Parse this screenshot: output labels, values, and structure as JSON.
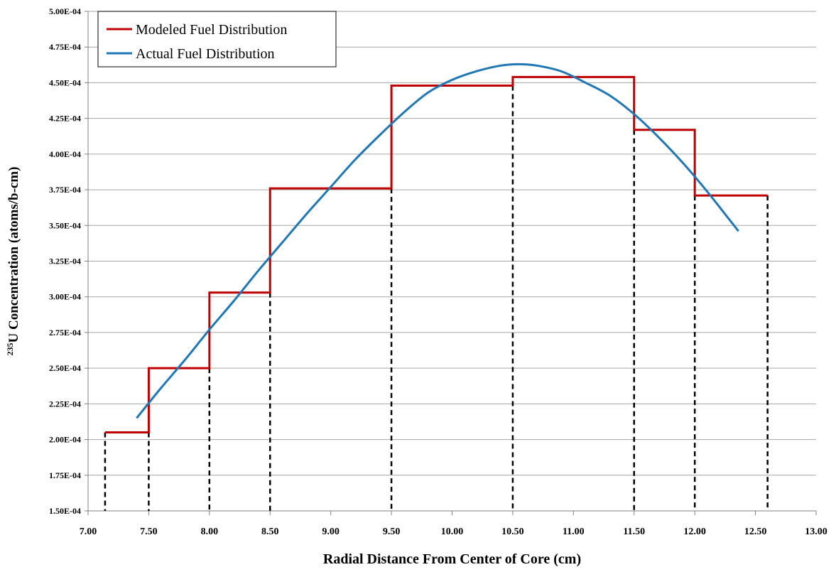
{
  "chart_data": {
    "type": "line",
    "xlabel": "Radial Distance From Center of Core (cm)",
    "ylabel": {
      "superscript": "235",
      "text": "U Concentration (atoms/b-cm)"
    },
    "xlim": [
      7.0,
      13.0
    ],
    "ylim": [
      0.00015,
      0.0005
    ],
    "x_ticks": [
      "7.00",
      "7.50",
      "8.00",
      "8.50",
      "9.00",
      "9.50",
      "10.00",
      "10.50",
      "11.00",
      "11.50",
      "12.00",
      "12.50",
      "13.00"
    ],
    "y_ticks": [
      "1.50E-04",
      "1.75E-04",
      "2.00E-04",
      "2.25E-04",
      "2.50E-04",
      "2.75E-04",
      "3.00E-04",
      "3.25E-04",
      "3.50E-04",
      "3.75E-04",
      "4.00E-04",
      "4.25E-04",
      "4.50E-04",
      "4.75E-04",
      "5.00E-04"
    ],
    "grid": "horizontal",
    "legend_position": "top-left",
    "series": [
      {
        "name": "Modeled Fuel Distribution",
        "style": "step",
        "color": "#c00000",
        "steps": [
          {
            "x0": 7.14,
            "x1": 7.5,
            "y": 0.000205
          },
          {
            "x0": 7.5,
            "x1": 8.0,
            "y": 0.00025
          },
          {
            "x0": 8.0,
            "x1": 8.5,
            "y": 0.000303
          },
          {
            "x0": 8.5,
            "x1": 9.5,
            "y": 0.000376
          },
          {
            "x0": 9.5,
            "x1": 10.5,
            "y": 0.000448
          },
          {
            "x0": 10.5,
            "x1": 11.5,
            "y": 0.000454
          },
          {
            "x0": 11.5,
            "x1": 12.0,
            "y": 0.000417
          },
          {
            "x0": 12.0,
            "x1": 12.6,
            "y": 0.000371
          }
        ]
      },
      {
        "name": "Actual Fuel Distribution",
        "style": "smooth",
        "color": "#1f77b4",
        "x": [
          7.4,
          7.6,
          7.8,
          8.0,
          8.2,
          8.4,
          8.6,
          8.8,
          9.0,
          9.2,
          9.4,
          9.6,
          9.8,
          10.0,
          10.2,
          10.4,
          10.55,
          10.7,
          10.9,
          11.1,
          11.3,
          11.5,
          11.7,
          11.9,
          12.1,
          12.36
        ],
        "y": [
          0.000215,
          0.000236,
          0.000256,
          0.000277,
          0.000297,
          0.000318,
          0.000338,
          0.000358,
          0.000377,
          0.000396,
          0.000413,
          0.000429,
          0.000443,
          0.000452,
          0.000458,
          0.000462,
          0.000463,
          0.000462,
          0.000458,
          0.00045,
          0.000441,
          0.000428,
          0.000412,
          0.000394,
          0.000374,
          0.000346
        ]
      }
    ],
    "dashed_boundaries": [
      {
        "x": 7.14,
        "y": 0.000205
      },
      {
        "x": 7.5,
        "y": 0.000205
      },
      {
        "x": 8.0,
        "y": 0.00025
      },
      {
        "x": 8.5,
        "y": 0.000303
      },
      {
        "x": 9.5,
        "y": 0.000376
      },
      {
        "x": 10.5,
        "y": 0.000448
      },
      {
        "x": 11.5,
        "y": 0.000417
      },
      {
        "x": 12.0,
        "y": 0.000371
      },
      {
        "x": 12.6,
        "y": 0.000371
      }
    ]
  }
}
